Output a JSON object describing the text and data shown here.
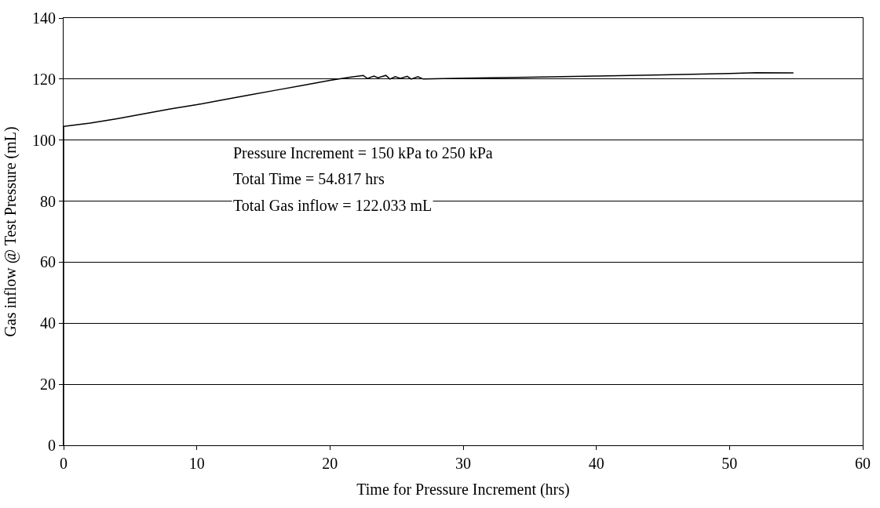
{
  "chart_data": {
    "type": "line",
    "xlabel": "Time for Pressure Increment (hrs)",
    "ylabel": "Gas inflow @ Test Pressure (mL)",
    "x": [
      0,
      0,
      2,
      4,
      6,
      8,
      10,
      12,
      14,
      16,
      18,
      20,
      21.5,
      22.5,
      22.8,
      23.3,
      23.6,
      24.2,
      24.5,
      24.9,
      25.3,
      25.8,
      26.1,
      26.6,
      27,
      30,
      35,
      40,
      45,
      50,
      52,
      54.8
    ],
    "series": [
      {
        "color": "#000000",
        "values": [
          0,
          104.5,
          105.6,
          107,
          108.6,
          110.2,
          111.6,
          113.2,
          114.8,
          116.4,
          118,
          119.6,
          120.6,
          121.2,
          120.2,
          121,
          120.4,
          121.2,
          120,
          120.8,
          120.2,
          120.9,
          120,
          120.8,
          120,
          120.3,
          120.6,
          121,
          121.4,
          121.8,
          122.1,
          122
        ]
      }
    ],
    "xlim": [
      0,
      60
    ],
    "ylim": [
      0,
      140
    ],
    "xticks": [
      0,
      10,
      20,
      30,
      40,
      50,
      60
    ],
    "yticks": [
      0,
      20,
      40,
      60,
      80,
      100,
      120,
      140
    ],
    "grid": "y",
    "marker": "none",
    "line_style": "solid",
    "annotations": [
      "Pressure Increment = 150 kPa to 250 kPa",
      "Total Time = 54.817 hrs",
      "Total Gas inflow = 122.033 mL"
    ]
  }
}
